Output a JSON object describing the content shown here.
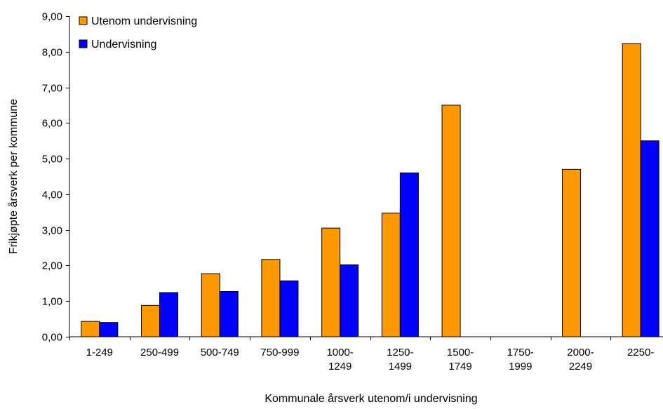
{
  "chart_data": {
    "type": "bar",
    "title": "",
    "xlabel": "Kommunale årsverk utenom/i undervisning",
    "ylabel": "Frikjøpte årsverk per kommune",
    "ylim": [
      0,
      9
    ],
    "yticks": [
      "0,00",
      "1,00",
      "2,00",
      "3,00",
      "4,00",
      "5,00",
      "6,00",
      "7,00",
      "8,00",
      "9,00"
    ],
    "categories": [
      [
        "1-249"
      ],
      [
        "250-499"
      ],
      [
        "500-749"
      ],
      [
        "750-999"
      ],
      [
        "1000-",
        "1249"
      ],
      [
        "1250-",
        "1499"
      ],
      [
        "1500-",
        "1749"
      ],
      [
        "1750-",
        "1999"
      ],
      [
        "2000-",
        "2249"
      ],
      [
        "2250-"
      ]
    ],
    "series": [
      {
        "name": "Utenom undervisning",
        "color": "#FF9900",
        "values": [
          0.43,
          0.88,
          1.77,
          2.17,
          3.05,
          3.47,
          6.5,
          null,
          4.7,
          8.23
        ]
      },
      {
        "name": "Undervisning",
        "color": "#0000FF",
        "values": [
          0.4,
          1.24,
          1.27,
          1.57,
          2.02,
          4.6,
          null,
          null,
          null,
          5.5
        ]
      }
    ],
    "grid": false,
    "legend_position": "top-left"
  }
}
